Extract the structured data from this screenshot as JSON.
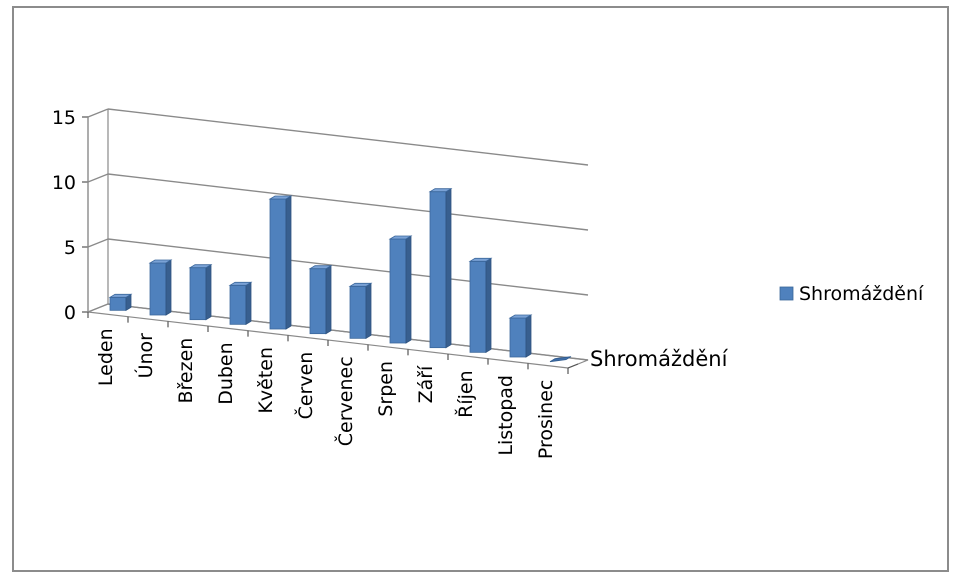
{
  "chart_data": {
    "type": "bar",
    "variant": "3d-column",
    "categories": [
      "Leden",
      "Únor",
      "Březen",
      "Duben",
      "Květen",
      "Červen",
      "Červenec",
      "Srpen",
      "Září",
      "Říjen",
      "Listopad",
      "Prosinec"
    ],
    "series": [
      {
        "name": "Shromáždění",
        "values": [
          1,
          4,
          4,
          3,
          10,
          5,
          4,
          8,
          12,
          7,
          3,
          0
        ],
        "color": "#4F81BD"
      }
    ],
    "depth_label": "Shromáždění",
    "yticks": [
      "0",
      "5",
      "10",
      "15"
    ],
    "ylim": [
      0,
      15
    ],
    "grid": true,
    "legend_position": "right"
  }
}
